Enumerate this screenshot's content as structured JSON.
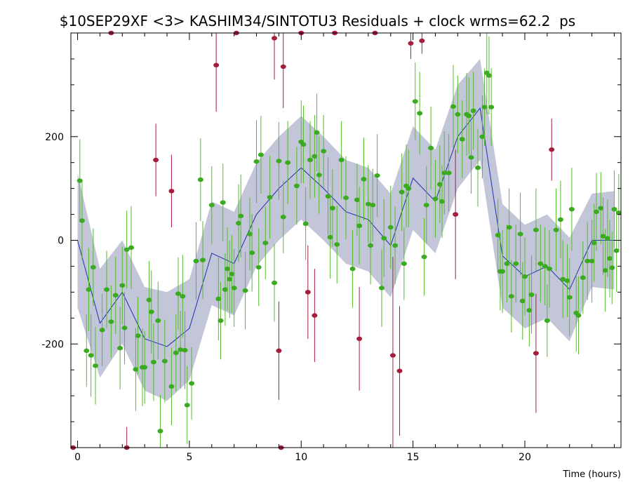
{
  "chart_data": {
    "type": "scatter",
    "title": "$10SEP29XF <3> KASHIM34/SINTOTU3 Residuals + clock wrms=62.2  ps",
    "xlabel": "Time (hours)",
    "ylabel": "",
    "xlim": [
      -0.3,
      24.3
    ],
    "ylim": [
      -400,
      400
    ],
    "x_ticks": [
      0,
      5,
      10,
      15,
      20
    ],
    "y_ticks": [
      -200,
      0,
      200
    ],
    "grid": false,
    "legend": "none",
    "colors": {
      "good_point": "#3aaa1e",
      "good_bar": "#55bb2a",
      "flagged_point": "#a51d3c",
      "flagged_bar": "#a51d3c",
      "clock_line": "#1f2fb0",
      "band": "#c3c6d8"
    },
    "clock_model": {
      "x": [
        0,
        1,
        2,
        3,
        4,
        5,
        6,
        7,
        8,
        9,
        10,
        11,
        12,
        13,
        14,
        15,
        16,
        17,
        18,
        19,
        20,
        21,
        22,
        23,
        24
      ],
      "y": [
        0,
        -160,
        -100,
        -190,
        -205,
        -170,
        -25,
        -45,
        50,
        100,
        140,
        100,
        55,
        40,
        -10,
        120,
        75,
        200,
        255,
        -30,
        -70,
        -50,
        -95,
        0,
        0
      ],
      "band_upper": [
        130,
        -55,
        0,
        -90,
        -100,
        -75,
        75,
        55,
        150,
        200,
        240,
        200,
        155,
        140,
        90,
        220,
        175,
        300,
        350,
        70,
        30,
        50,
        5,
        90,
        95
      ],
      "band_lower": [
        -130,
        -265,
        -200,
        -290,
        -310,
        -270,
        -125,
        -145,
        -50,
        0,
        40,
        0,
        -45,
        -60,
        -110,
        20,
        -25,
        100,
        155,
        -130,
        -170,
        -150,
        -195,
        -90,
        -95
      ]
    },
    "series": [
      {
        "points": [
          {
            "x": 0.1,
            "y": 115,
            "e": 80
          },
          {
            "x": 0.2,
            "y": 38,
            "e": 75
          },
          {
            "x": 0.4,
            "y": -213,
            "e": 70
          },
          {
            "x": 0.5,
            "y": -95,
            "e": 80
          },
          {
            "x": 0.6,
            "y": -222,
            "e": 80
          },
          {
            "x": 0.7,
            "y": -52,
            "e": 75
          },
          {
            "x": 0.8,
            "y": -242,
            "e": 75
          },
          {
            "x": 1.1,
            "y": -173,
            "e": 70
          },
          {
            "x": 1.3,
            "y": -95,
            "e": 75
          },
          {
            "x": 1.5,
            "y": -157,
            "e": 70
          },
          {
            "x": 1.7,
            "y": -106,
            "e": 75
          },
          {
            "x": 1.9,
            "y": -208,
            "e": 80
          },
          {
            "x": 2.0,
            "y": -87,
            "e": 75
          },
          {
            "x": 2.1,
            "y": -169,
            "e": 70
          },
          {
            "x": 2.2,
            "y": -18,
            "e": 75
          },
          {
            "x": 2.4,
            "y": -14,
            "e": 80
          },
          {
            "x": 2.6,
            "y": -249,
            "e": 80
          },
          {
            "x": 2.7,
            "y": -184,
            "e": 75
          },
          {
            "x": 2.9,
            "y": -245,
            "e": 75
          },
          {
            "x": 3.0,
            "y": -245,
            "e": 70
          },
          {
            "x": 3.2,
            "y": -115,
            "e": 75
          },
          {
            "x": 3.3,
            "y": -138,
            "e": 80
          },
          {
            "x": 3.4,
            "y": -235,
            "e": 75
          },
          {
            "x": 3.6,
            "y": -155,
            "e": 75
          },
          {
            "x": 3.7,
            "y": -368,
            "e": 70
          },
          {
            "x": 3.9,
            "y": -233,
            "e": 80
          },
          {
            "x": 4.2,
            "y": -282,
            "e": 75
          },
          {
            "x": 4.4,
            "y": -217,
            "e": 75
          },
          {
            "x": 4.5,
            "y": -103,
            "e": 70
          },
          {
            "x": 4.6,
            "y": -211,
            "e": 75
          },
          {
            "x": 4.7,
            "y": -108,
            "e": 80
          },
          {
            "x": 4.8,
            "y": -212,
            "e": 75
          },
          {
            "x": 4.9,
            "y": -318,
            "e": 75
          },
          {
            "x": 5.1,
            "y": -276,
            "e": 70
          },
          {
            "x": 5.3,
            "y": -40,
            "e": 75
          },
          {
            "x": 5.5,
            "y": 117,
            "e": 80
          },
          {
            "x": 5.6,
            "y": -38,
            "e": 75
          },
          {
            "x": 6.0,
            "y": 68,
            "e": 75
          },
          {
            "x": 6.3,
            "y": -113,
            "e": 80
          },
          {
            "x": 6.4,
            "y": -155,
            "e": 75
          },
          {
            "x": 6.5,
            "y": 73,
            "e": 75
          },
          {
            "x": 6.6,
            "y": -95,
            "e": 70
          },
          {
            "x": 6.7,
            "y": -55,
            "e": 80
          },
          {
            "x": 6.8,
            "y": -75,
            "e": 75
          },
          {
            "x": 6.9,
            "y": -65,
            "e": 75
          },
          {
            "x": 7.0,
            "y": -92,
            "e": 75
          },
          {
            "x": 7.2,
            "y": 33,
            "e": 75
          },
          {
            "x": 7.3,
            "y": 47,
            "e": 80
          },
          {
            "x": 7.5,
            "y": -97,
            "e": 75
          },
          {
            "x": 7.7,
            "y": 12,
            "e": 70
          },
          {
            "x": 7.8,
            "y": -24,
            "e": 75
          },
          {
            "x": 8.0,
            "y": 152,
            "e": 80
          },
          {
            "x": 8.1,
            "y": -52,
            "e": 75
          },
          {
            "x": 8.2,
            "y": 165,
            "e": 75
          },
          {
            "x": 8.4,
            "y": -5,
            "e": 70
          },
          {
            "x": 8.6,
            "y": 83,
            "e": 80
          },
          {
            "x": 8.8,
            "y": -82,
            "e": 75
          },
          {
            "x": 9.0,
            "y": 153,
            "e": 75
          },
          {
            "x": 9.2,
            "y": 45,
            "e": 70
          },
          {
            "x": 9.4,
            "y": 150,
            "e": 80
          },
          {
            "x": 9.8,
            "y": 105,
            "e": 75
          },
          {
            "x": 10.0,
            "y": 190,
            "e": 80
          },
          {
            "x": 10.1,
            "y": 185,
            "e": 75
          },
          {
            "x": 10.2,
            "y": 32,
            "e": 70
          },
          {
            "x": 10.4,
            "y": 155,
            "e": 75
          },
          {
            "x": 10.6,
            "y": 162,
            "e": 80
          },
          {
            "x": 10.7,
            "y": 208,
            "e": 75
          },
          {
            "x": 10.8,
            "y": 126,
            "e": 75
          },
          {
            "x": 11.0,
            "y": 172,
            "e": 70
          },
          {
            "x": 11.2,
            "y": 85,
            "e": 75
          },
          {
            "x": 11.3,
            "y": 6,
            "e": 80
          },
          {
            "x": 11.4,
            "y": 62,
            "e": 75
          },
          {
            "x": 11.6,
            "y": -8,
            "e": 75
          },
          {
            "x": 11.8,
            "y": 155,
            "e": 75
          },
          {
            "x": 12.0,
            "y": 82,
            "e": 80
          },
          {
            "x": 12.3,
            "y": -55,
            "e": 75
          },
          {
            "x": 12.5,
            "y": 78,
            "e": 70
          },
          {
            "x": 12.6,
            "y": 28,
            "e": 75
          },
          {
            "x": 12.8,
            "y": 118,
            "e": 80
          },
          {
            "x": 13.0,
            "y": 70,
            "e": 75
          },
          {
            "x": 13.1,
            "y": -10,
            "e": 75
          },
          {
            "x": 13.2,
            "y": 68,
            "e": 70
          },
          {
            "x": 13.4,
            "y": 125,
            "e": 80
          },
          {
            "x": 13.6,
            "y": -92,
            "e": 75
          },
          {
            "x": 13.7,
            "y": 4,
            "e": 75
          },
          {
            "x": 14.0,
            "y": 25,
            "e": 80
          },
          {
            "x": 14.2,
            "y": -10,
            "e": 75
          },
          {
            "x": 14.5,
            "y": 93,
            "e": 75
          },
          {
            "x": 14.6,
            "y": -45,
            "e": 70
          },
          {
            "x": 14.7,
            "y": 105,
            "e": 80
          },
          {
            "x": 14.8,
            "y": 100,
            "e": 75
          },
          {
            "x": 15.1,
            "y": 268,
            "e": 75
          },
          {
            "x": 15.3,
            "y": 245,
            "e": 80
          },
          {
            "x": 15.5,
            "y": -32,
            "e": 75
          },
          {
            "x": 15.6,
            "y": 68,
            "e": 75
          },
          {
            "x": 15.8,
            "y": 178,
            "e": 80
          },
          {
            "x": 16.0,
            "y": 80,
            "e": 75
          },
          {
            "x": 16.2,
            "y": 108,
            "e": 75
          },
          {
            "x": 16.3,
            "y": 75,
            "e": 70
          },
          {
            "x": 16.4,
            "y": 130,
            "e": 80
          },
          {
            "x": 16.6,
            "y": 130,
            "e": 75
          },
          {
            "x": 16.8,
            "y": 258,
            "e": 80
          },
          {
            "x": 17.0,
            "y": 243,
            "e": 75
          },
          {
            "x": 17.2,
            "y": 195,
            "e": 75
          },
          {
            "x": 17.4,
            "y": 243,
            "e": 80
          },
          {
            "x": 17.5,
            "y": 240,
            "e": 75
          },
          {
            "x": 17.6,
            "y": 160,
            "e": 70
          },
          {
            "x": 17.7,
            "y": 250,
            "e": 75
          },
          {
            "x": 17.9,
            "y": 140,
            "e": 75
          },
          {
            "x": 18.1,
            "y": 200,
            "e": 80
          },
          {
            "x": 18.2,
            "y": 257,
            "e": 75
          },
          {
            "x": 18.3,
            "y": 323,
            "e": 80
          },
          {
            "x": 18.4,
            "y": 318,
            "e": 75
          },
          {
            "x": 18.5,
            "y": 257,
            "e": 75
          },
          {
            "x": 18.8,
            "y": 10,
            "e": 70
          },
          {
            "x": 18.9,
            "y": -60,
            "e": 75
          },
          {
            "x": 19.0,
            "y": -60,
            "e": 80
          },
          {
            "x": 19.2,
            "y": -45,
            "e": 75
          },
          {
            "x": 19.3,
            "y": 25,
            "e": 75
          },
          {
            "x": 19.4,
            "y": -108,
            "e": 70
          },
          {
            "x": 19.6,
            "y": -45,
            "e": 75
          },
          {
            "x": 19.8,
            "y": 12,
            "e": 80
          },
          {
            "x": 19.9,
            "y": -117,
            "e": 75
          },
          {
            "x": 20.0,
            "y": -70,
            "e": 75
          },
          {
            "x": 20.2,
            "y": -135,
            "e": 70
          },
          {
            "x": 20.3,
            "y": -105,
            "e": 75
          },
          {
            "x": 20.5,
            "y": 20,
            "e": 80
          },
          {
            "x": 20.7,
            "y": -45,
            "e": 75
          },
          {
            "x": 20.9,
            "y": -50,
            "e": 75
          },
          {
            "x": 21.0,
            "y": -155,
            "e": 70
          },
          {
            "x": 21.1,
            "y": -55,
            "e": 75
          },
          {
            "x": 21.4,
            "y": 20,
            "e": 80
          },
          {
            "x": 21.6,
            "y": 40,
            "e": 75
          },
          {
            "x": 21.7,
            "y": -75,
            "e": 75
          },
          {
            "x": 21.9,
            "y": -78,
            "e": 70
          },
          {
            "x": 22.0,
            "y": -110,
            "e": 75
          },
          {
            "x": 22.1,
            "y": 60,
            "e": 80
          },
          {
            "x": 22.3,
            "y": -140,
            "e": 75
          },
          {
            "x": 22.4,
            "y": -145,
            "e": 75
          },
          {
            "x": 22.6,
            "y": -72,
            "e": 70
          },
          {
            "x": 22.8,
            "y": -40,
            "e": 75
          },
          {
            "x": 23.0,
            "y": -40,
            "e": 80
          },
          {
            "x": 23.1,
            "y": -5,
            "e": 75
          },
          {
            "x": 23.2,
            "y": 55,
            "e": 75
          },
          {
            "x": 23.4,
            "y": 62,
            "e": 70
          },
          {
            "x": 23.5,
            "y": 8,
            "e": 75
          },
          {
            "x": 23.6,
            "y": -58,
            "e": 80
          },
          {
            "x": 23.7,
            "y": 4,
            "e": 75
          },
          {
            "x": 23.8,
            "y": -35,
            "e": 75
          },
          {
            "x": 23.9,
            "y": -53,
            "e": 70
          },
          {
            "x": 24.0,
            "y": 60,
            "e": 75
          },
          {
            "x": 24.1,
            "y": -20,
            "e": 80
          },
          {
            "x": 24.2,
            "y": 53,
            "e": 75
          }
        ]
      },
      {
        "points": [
          {
            "x": -0.2,
            "y": -400,
            "e": 0
          },
          {
            "x": 1.5,
            "y": 400,
            "e": 0
          },
          {
            "x": 2.2,
            "y": -400,
            "e": 40
          },
          {
            "x": 3.5,
            "y": 155,
            "e": 70
          },
          {
            "x": 4.2,
            "y": 95,
            "e": 70
          },
          {
            "x": 6.2,
            "y": 338,
            "e": 90
          },
          {
            "x": 7.1,
            "y": 400,
            "e": 0
          },
          {
            "x": 8.8,
            "y": 390,
            "e": 80
          },
          {
            "x": 9.0,
            "y": -213,
            "e": 95
          },
          {
            "x": 9.1,
            "y": -400,
            "e": 0
          },
          {
            "x": 9.2,
            "y": 335,
            "e": 80
          },
          {
            "x": 10.0,
            "y": 400,
            "e": 0
          },
          {
            "x": 10.3,
            "y": -100,
            "e": 90
          },
          {
            "x": 10.6,
            "y": -145,
            "e": 90
          },
          {
            "x": 11.5,
            "y": 400,
            "e": 0
          },
          {
            "x": 12.6,
            "y": -190,
            "e": 100
          },
          {
            "x": 13.3,
            "y": 400,
            "e": 0
          },
          {
            "x": 14.1,
            "y": -222,
            "e": 190
          },
          {
            "x": 14.4,
            "y": -252,
            "e": 125
          },
          {
            "x": 14.9,
            "y": 380,
            "e": 30
          },
          {
            "x": 15.4,
            "y": 385,
            "e": 25
          },
          {
            "x": 16.9,
            "y": 50,
            "e": 125
          },
          {
            "x": 20.5,
            "y": -218,
            "e": 115
          },
          {
            "x": 21.2,
            "y": 175,
            "e": 60
          }
        ]
      }
    ]
  }
}
